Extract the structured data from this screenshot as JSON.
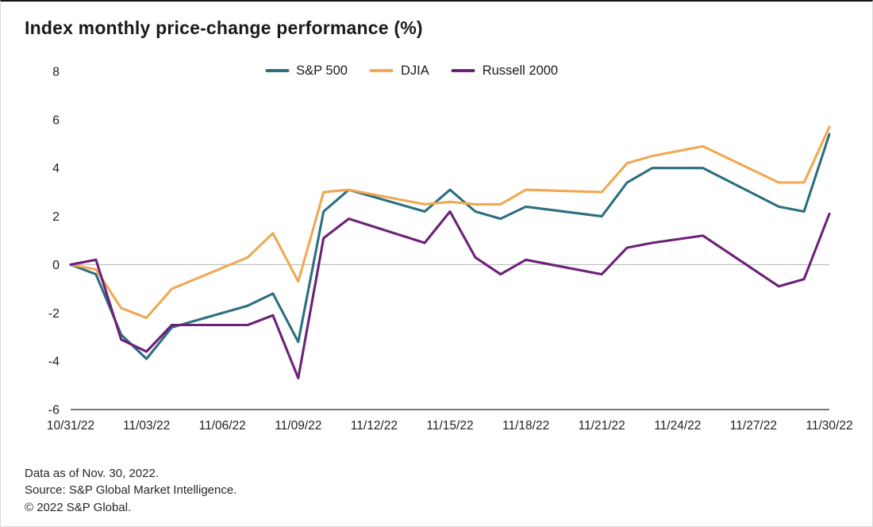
{
  "chart_data": {
    "type": "line",
    "title": "Index monthly price-change performance (%)",
    "ylabel": "",
    "xlabel": "",
    "ylim": [
      -6,
      8
    ],
    "y_ticks": [
      8,
      6,
      4,
      2,
      0,
      -2,
      -4,
      -6
    ],
    "zero_line": true,
    "grid": false,
    "legend_position": "top-center",
    "x_tick_labels": [
      "10/31/22",
      "11/03/22",
      "11/06/22",
      "11/09/22",
      "11/12/22",
      "11/15/22",
      "11/18/22",
      "11/21/22",
      "11/24/22",
      "11/27/22",
      "11/30/22"
    ],
    "x_tick_day_offsets": [
      0,
      3,
      6,
      9,
      12,
      15,
      18,
      21,
      24,
      27,
      30
    ],
    "dates": [
      "10/31/22",
      "11/01/22",
      "11/02/22",
      "11/03/22",
      "11/04/22",
      "11/07/22",
      "11/08/22",
      "11/09/22",
      "11/10/22",
      "11/11/22",
      "11/14/22",
      "11/15/22",
      "11/16/22",
      "11/17/22",
      "11/18/22",
      "11/21/22",
      "11/22/22",
      "11/23/22",
      "11/25/22",
      "11/28/22",
      "11/29/22",
      "11/30/22"
    ],
    "day_offsets": [
      0,
      1,
      2,
      3,
      4,
      7,
      8,
      9,
      10,
      11,
      14,
      15,
      16,
      17,
      18,
      21,
      22,
      23,
      25,
      28,
      29,
      30
    ],
    "series": [
      {
        "name": "S&P 500",
        "color": "#2B6F80",
        "values": [
          0,
          -0.4,
          -2.9,
          -3.9,
          -2.6,
          -1.7,
          -1.2,
          -3.2,
          2.2,
          3.1,
          2.2,
          3.1,
          2.2,
          1.9,
          2.4,
          2.0,
          3.4,
          4.0,
          4.0,
          2.4,
          2.2,
          5.4
        ]
      },
      {
        "name": "DJIA",
        "color": "#F0A852",
        "values": [
          0,
          -0.2,
          -1.8,
          -2.2,
          -1.0,
          0.3,
          1.3,
          -0.7,
          3.0,
          3.1,
          2.5,
          2.6,
          2.5,
          2.5,
          3.1,
          3.0,
          4.2,
          4.5,
          4.9,
          3.4,
          3.4,
          5.7
        ]
      },
      {
        "name": "Russell 2000",
        "color": "#6D2077",
        "values": [
          0,
          0.2,
          -3.1,
          -3.6,
          -2.5,
          -2.5,
          -2.1,
          -4.7,
          1.1,
          1.9,
          0.9,
          2.2,
          0.3,
          -0.4,
          0.2,
          -0.4,
          0.7,
          0.9,
          1.2,
          -0.9,
          -0.6,
          2.1
        ]
      }
    ]
  },
  "footnotes": [
    "Data as of Nov. 30, 2022.",
    "Source: S&P Global Market Intelligence.",
    "© 2022 S&P Global."
  ]
}
